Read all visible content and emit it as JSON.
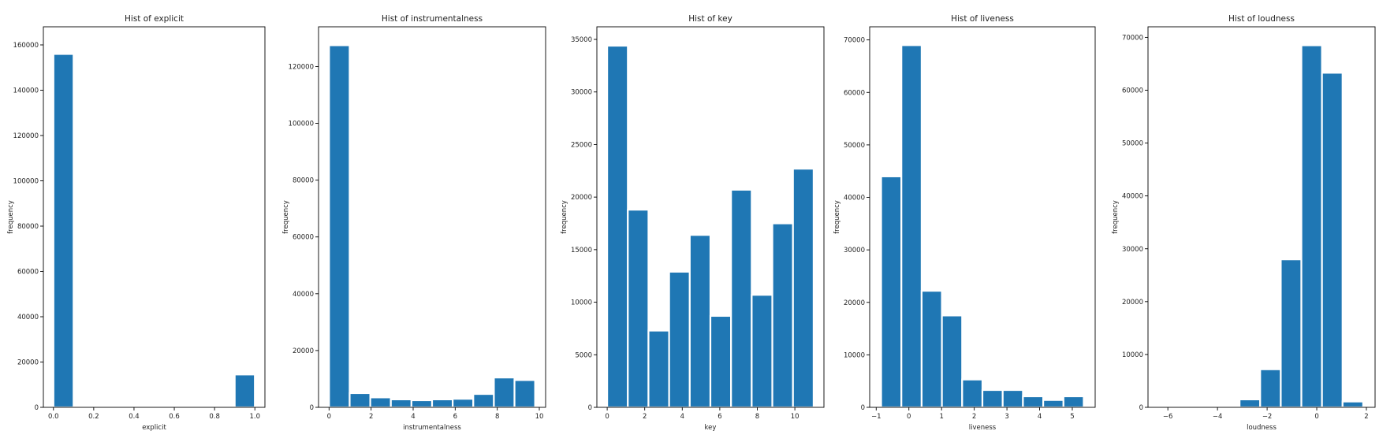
{
  "chart_data": [
    {
      "type": "bar",
      "title": "Hist of explicit",
      "xlabel": "explicit",
      "ylabel": "frequency",
      "xlim": [
        -0.05,
        1.05
      ],
      "ylim": [
        0,
        168000
      ],
      "xticks": [
        0.0,
        0.2,
        0.4,
        0.6,
        0.8,
        1.0
      ],
      "xtick_labels": [
        "0.0",
        "0.2",
        "0.4",
        "0.6",
        "0.8",
        "1.0"
      ],
      "yticks": [
        0,
        20000,
        40000,
        60000,
        80000,
        100000,
        120000,
        140000,
        160000
      ],
      "ytick_labels": [
        "0",
        "20000",
        "40000",
        "60000",
        "80000",
        "100000",
        "120000",
        "140000",
        "160000"
      ],
      "bin_edges": [
        0,
        0.1,
        0.2,
        0.3,
        0.4,
        0.5,
        0.6,
        0.7,
        0.8,
        0.9,
        1.0
      ],
      "values": [
        156000,
        0,
        0,
        0,
        0,
        0,
        0,
        0,
        0,
        14500
      ]
    },
    {
      "type": "bar",
      "title": "Hist of instrumentalness",
      "xlabel": "instrumentalness",
      "ylabel": "frequency",
      "xlim": [
        -0.5,
        10.3
      ],
      "ylim": [
        0,
        134000
      ],
      "xticks": [
        0,
        2,
        4,
        6,
        8,
        10
      ],
      "xtick_labels": [
        "0",
        "2",
        "4",
        "6",
        "8",
        "10"
      ],
      "yticks": [
        0,
        20000,
        40000,
        60000,
        80000,
        100000,
        120000
      ],
      "ytick_labels": [
        "0",
        "20000",
        "40000",
        "60000",
        "80000",
        "100000",
        "120000"
      ],
      "bin_edges": [
        0,
        0.98,
        1.96,
        2.94,
        3.92,
        4.9,
        5.88,
        6.86,
        7.84,
        8.82,
        9.8
      ],
      "values": [
        127500,
        5000,
        3500,
        2800,
        2500,
        2800,
        3000,
        4700,
        10500,
        9600
      ]
    },
    {
      "type": "bar",
      "title": "Hist of key",
      "xlabel": "key",
      "ylabel": "frequency",
      "xlim": [
        -0.55,
        11.55
      ],
      "ylim": [
        0,
        36200
      ],
      "xticks": [
        0,
        2,
        4,
        6,
        8,
        10
      ],
      "xtick_labels": [
        "0",
        "2",
        "4",
        "6",
        "8",
        "10"
      ],
      "yticks": [
        0,
        5000,
        10000,
        15000,
        20000,
        25000,
        30000,
        35000
      ],
      "ytick_labels": [
        "0",
        "5000",
        "10000",
        "15000",
        "20000",
        "25000",
        "30000",
        "35000"
      ],
      "bin_edges": [
        0,
        1.1,
        2.2,
        3.3,
        4.4,
        5.5,
        6.6,
        7.7,
        8.8,
        9.9,
        11.0
      ],
      "values": [
        34400,
        18800,
        7300,
        12900,
        16400,
        8700,
        20700,
        10700,
        17500,
        22700
      ]
    },
    {
      "type": "bar",
      "title": "Hist of liveness",
      "xlabel": "liveness",
      "ylabel": "frequency",
      "xlim": [
        -1.2,
        5.7
      ],
      "ylim": [
        0,
        72500
      ],
      "xticks": [
        -1,
        0,
        1,
        2,
        3,
        4,
        5
      ],
      "xtick_labels": [
        "−1",
        "0",
        "1",
        "2",
        "3",
        "4",
        "5"
      ],
      "yticks": [
        0,
        10000,
        20000,
        30000,
        40000,
        50000,
        60000,
        70000
      ],
      "ytick_labels": [
        "0",
        "10000",
        "20000",
        "30000",
        "40000",
        "50000",
        "60000",
        "70000"
      ],
      "bin_edges": [
        -0.85,
        -0.23,
        0.39,
        1.01,
        1.63,
        2.25,
        2.87,
        3.49,
        4.11,
        4.73,
        5.35
      ],
      "values": [
        44000,
        69000,
        22200,
        17500,
        5300,
        3300,
        3300,
        2100,
        1400,
        2100
      ]
    },
    {
      "type": "bar",
      "title": "Hist of loudness",
      "xlabel": "loudness",
      "ylabel": "frequency",
      "xlim": [
        -6.8,
        2.35
      ],
      "ylim": [
        0,
        72000
      ],
      "xticks": [
        -6,
        -4,
        -2,
        0,
        2
      ],
      "xtick_labels": [
        "−6",
        "−4",
        "−2",
        "0",
        "2"
      ],
      "yticks": [
        0,
        10000,
        20000,
        30000,
        40000,
        50000,
        60000,
        70000
      ],
      "ytick_labels": [
        "0",
        "10000",
        "20000",
        "30000",
        "40000",
        "50000",
        "60000",
        "70000"
      ],
      "bin_edges": [
        -6.43,
        -5.6,
        -4.77,
        -3.94,
        -3.11,
        -2.28,
        -1.45,
        -0.62,
        0.21,
        1.04,
        1.87
      ],
      "values": [
        0,
        0,
        0,
        300,
        1500,
        7200,
        28000,
        68500,
        63300,
        1100
      ]
    }
  ]
}
